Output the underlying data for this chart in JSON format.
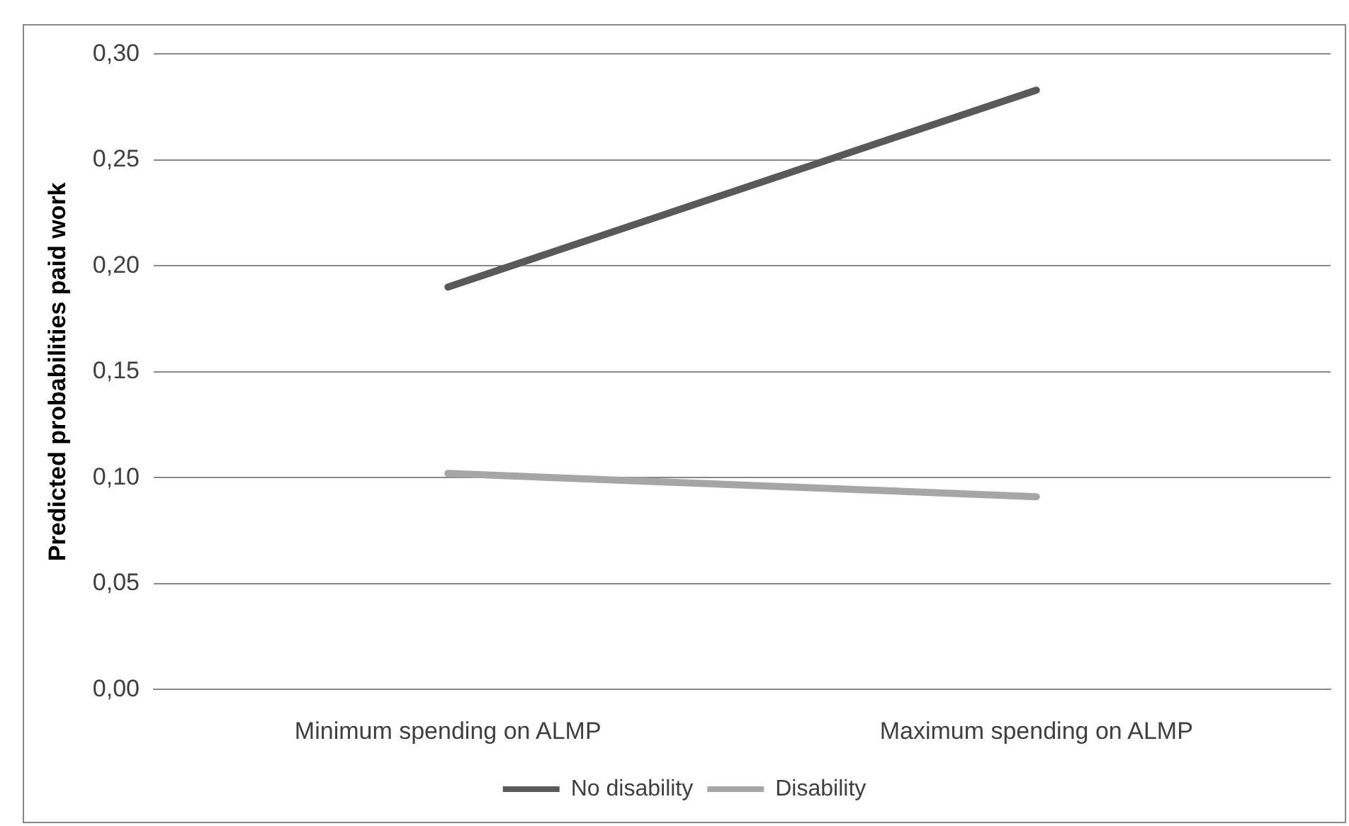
{
  "chart_data": {
    "type": "line",
    "ylabel": "Predicted probabilities paid work",
    "categories": [
      "Minimum spending on ALMP",
      "Maximum spending on ALMP"
    ],
    "series": [
      {
        "name": "No disability",
        "color": "#595959",
        "values": [
          0.19,
          0.283
        ]
      },
      {
        "name": "Disability",
        "color": "#a6a6a6",
        "values": [
          0.102,
          0.091
        ]
      }
    ],
    "ylim": [
      0,
      0.3
    ],
    "yticks": [
      {
        "value": 0,
        "label": "0,00"
      },
      {
        "value": 0.05,
        "label": "0,05"
      },
      {
        "value": 0.1,
        "label": "0,10"
      },
      {
        "value": 0.15,
        "label": "0,15"
      },
      {
        "value": 0.2,
        "label": "0,20"
      },
      {
        "value": 0.25,
        "label": "0,25"
      },
      {
        "value": 0.3,
        "label": "0,30"
      }
    ],
    "grid": "y",
    "legend": "bottom",
    "marker": "none",
    "line_style": "solid"
  }
}
